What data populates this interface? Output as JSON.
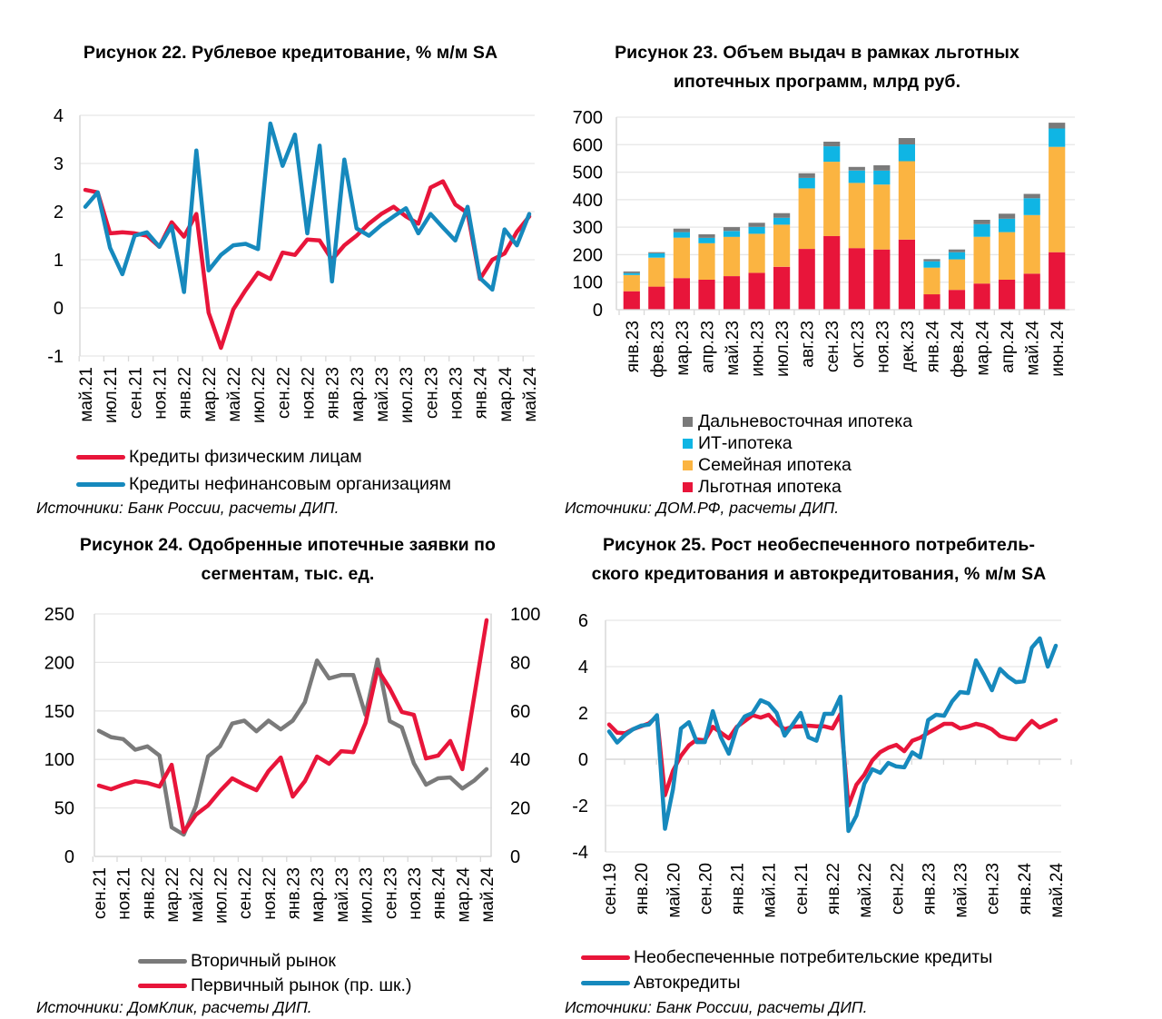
{
  "chart_data": [
    {
      "id": "fig22",
      "type": "line",
      "title": "Рисунок 22. Рублевое кредитование, % м/м SA",
      "xlabel": "",
      "ylabel": "",
      "ylim": [
        -1,
        4
      ],
      "yticks": [
        "4",
        "3",
        "2",
        "1",
        "0",
        "-1"
      ],
      "grid": true,
      "legend_position": "bottom",
      "x_tick_labels": [
        "май.21",
        "июл.21",
        "сен.21",
        "ноя.21",
        "янв.22",
        "мар.22",
        "май.22",
        "июл.22",
        "сен.22",
        "ноя.22",
        "янв.23",
        "мар.23",
        "май.23",
        "июл.23",
        "сен.23",
        "ноя.23",
        "янв.24",
        "мар.24",
        "май.24"
      ],
      "x_start": "май.21",
      "x_end": "май.24",
      "series": [
        {
          "name": "Кредиты физическим лицам",
          "color": "#e8153a",
          "values": [
            2.45,
            2.4,
            1.55,
            1.57,
            1.55,
            1.5,
            1.27,
            1.78,
            1.48,
            1.95,
            -0.1,
            -0.83,
            -0.03,
            0.37,
            0.73,
            0.6,
            1.15,
            1.1,
            1.42,
            1.4,
            1.0,
            1.3,
            1.5,
            1.75,
            1.95,
            2.1,
            1.9,
            1.75,
            2.5,
            2.63,
            2.15,
            1.97,
            0.6,
            1.0,
            1.13,
            1.58,
            1.9
          ]
        },
        {
          "name": "Кредиты нефинансовым организациям",
          "color": "#1689bd",
          "values": [
            2.1,
            2.4,
            1.25,
            0.7,
            1.5,
            1.57,
            1.27,
            1.7,
            0.33,
            3.27,
            0.78,
            1.1,
            1.3,
            1.33,
            1.22,
            3.83,
            2.95,
            3.6,
            1.55,
            3.37,
            0.55,
            3.08,
            1.65,
            1.5,
            1.72,
            1.9,
            2.07,
            1.55,
            1.95,
            1.67,
            1.4,
            2.1,
            0.62,
            0.38,
            1.63,
            1.3,
            1.95
          ]
        }
      ],
      "source": "Источники: Банк России, расчеты ДИП."
    },
    {
      "id": "fig23",
      "type": "bar",
      "stacked": true,
      "title": "Рисунок 23. Объем выдач в рамках льготных ипотечных программ, млрд руб.",
      "xlabel": "",
      "ylabel": "",
      "ylim": [
        0,
        700
      ],
      "yticks": [
        "700",
        "600",
        "500",
        "400",
        "300",
        "200",
        "100",
        "0"
      ],
      "grid": true,
      "legend_position": "bottom",
      "categories": [
        "янв.23",
        "фев.23",
        "мар.23",
        "апр.23",
        "май.23",
        "июн.23",
        "июл.23",
        "авг.23",
        "сен.23",
        "окт.23",
        "ноя.23",
        "дек.23",
        "янв.24",
        "фев.24",
        "мар.24",
        "апр.24",
        "май.24",
        "июн.24"
      ],
      "series": [
        {
          "name": "Льготная ипотека",
          "color": "#e8153a",
          "values": [
            67,
            84,
            115,
            109,
            122,
            134,
            156,
            221,
            268,
            224,
            219,
            255,
            56,
            72,
            95,
            109,
            131,
            209
          ]
        },
        {
          "name": "Семейная ипотека",
          "color": "#fbb441",
          "values": [
            59,
            105,
            147,
            133,
            143,
            142,
            153,
            220,
            270,
            237,
            236,
            285,
            97,
            111,
            170,
            173,
            213,
            383
          ]
        },
        {
          "name": "ИТ-ипотека",
          "color": "#0fb5e4",
          "values": [
            7,
            16,
            20,
            19,
            21,
            25,
            25,
            38,
            56,
            45,
            51,
            61,
            23,
            26,
            46,
            49,
            61,
            67
          ]
        },
        {
          "name": "Дальневосточная ипотека",
          "color": "#7a7a7a",
          "values": [
            6,
            4,
            13,
            13,
            14,
            15,
            17,
            17,
            17,
            13,
            19,
            23,
            8,
            10,
            16,
            18,
            16,
            21
          ]
        }
      ],
      "legend_order": [
        "Дальневосточная ипотека",
        "ИТ-ипотека",
        "Семейная ипотека",
        "Льготная ипотека"
      ],
      "source": "Источники: ДОМ.РФ, расчеты ДИП."
    },
    {
      "id": "fig24",
      "type": "line",
      "title": "Рисунок 24. Одобренные ипотечные заявки по сегментам, тыс. ед.",
      "xlabel": "",
      "ylabel": "",
      "ylim": [
        0,
        250
      ],
      "y2lim": [
        0,
        100
      ],
      "yticks": [
        "250",
        "200",
        "150",
        "100",
        "50",
        "0"
      ],
      "y2ticks": [
        "100",
        "80",
        "60",
        "40",
        "20",
        "0"
      ],
      "grid": true,
      "legend_position": "bottom",
      "x_tick_labels": [
        "сен.21",
        "ноя.21",
        "янв.22",
        "мар.22",
        "май.22",
        "июл.22",
        "сен.22",
        "ноя.22",
        "янв.23",
        "мар.23",
        "май.23",
        "июл.23",
        "сен.23",
        "ноя.23",
        "янв.24",
        "мар.24",
        "май.24"
      ],
      "x_start": "сен.21",
      "x_end": "май.24",
      "series": [
        {
          "name": "Вторичный рынок",
          "axis": "left",
          "color": "#7a7a7a",
          "values": [
            129.5,
            123,
            121,
            110,
            113.5,
            104,
            30,
            22.5,
            52,
            103,
            113.5,
            137,
            140,
            129,
            140,
            131,
            140,
            159,
            202,
            183.5,
            187,
            187,
            146,
            203,
            139.5,
            133,
            96,
            74,
            80.5,
            81.5,
            70,
            78.5,
            90
          ]
        },
        {
          "name": "Первичный рынок (пр. шк.)",
          "axis": "right",
          "color": "#e8153a",
          "values": [
            29.2,
            27.7,
            29.6,
            31,
            30.3,
            28.8,
            37.8,
            10.1,
            17.2,
            21,
            27,
            32.2,
            29.6,
            27.3,
            35.2,
            40.8,
            24.7,
            31,
            41.2,
            38.2,
            43.4,
            43,
            55,
            77.2,
            69.3,
            59.6,
            58.4,
            40.4,
            41.6,
            47.6,
            36,
            66.7,
            97.4
          ]
        }
      ],
      "source": "Источники: ДомКлик, расчеты ДИП."
    },
    {
      "id": "fig25",
      "type": "line",
      "title": "Рисунок 25. Рост необеспеченного потребитель-ского кредитования и автокредитования, % м/м SA",
      "xlabel": "",
      "ylabel": "",
      "ylim": [
        -4,
        6
      ],
      "yticks": [
        "6",
        "4",
        "2",
        "0",
        "-2",
        "-4"
      ],
      "grid": true,
      "legend_position": "bottom",
      "x_tick_labels": [
        "сен.19",
        "янв.20",
        "май.20",
        "сен.20",
        "янв.21",
        "май.21",
        "сен.21",
        "янв.22",
        "май.22",
        "сен.22",
        "янв.23",
        "май.23",
        "сен.23",
        "янв.24",
        "май.24"
      ],
      "x_start": "сен.19",
      "x_end": "май.24",
      "series": [
        {
          "name": "Необеспеченные потребительские кредиты",
          "color": "#e8153a",
          "values": [
            1.5,
            1.15,
            1.12,
            1.3,
            1.42,
            1.55,
            1.85,
            -1.55,
            -0.5,
            0.15,
            0.6,
            0.85,
            0.82,
            1.4,
            1.15,
            0.9,
            1.4,
            1.65,
            1.9,
            1.8,
            1.92,
            1.55,
            1.3,
            1.4,
            1.42,
            1.45,
            1.42,
            1.42,
            1.33,
            1.95,
            -2.0,
            -1.1,
            -0.67,
            -0.05,
            0.31,
            0.5,
            0.62,
            0.35,
            0.8,
            0.93,
            1.14,
            1.33,
            1.53,
            1.53,
            1.33,
            1.41,
            1.53,
            1.45,
            1.29,
            1.0,
            0.9,
            0.86,
            1.29,
            1.65,
            1.37,
            1.53,
            1.69
          ]
        },
        {
          "name": "Автокредиты",
          "color": "#1689bd",
          "values": [
            1.2,
            0.72,
            1.05,
            1.3,
            1.45,
            1.5,
            1.9,
            -3.0,
            -1.3,
            1.33,
            1.6,
            0.74,
            0.74,
            2.08,
            0.95,
            0.24,
            1.35,
            1.85,
            2.0,
            2.55,
            2.4,
            2.0,
            1.02,
            1.5,
            2.0,
            0.95,
            0.8,
            1.96,
            1.96,
            2.7,
            -3.1,
            -2.43,
            -1.06,
            -0.43,
            -0.59,
            -0.16,
            -0.31,
            -0.35,
            0.3,
            0.08,
            1.69,
            1.92,
            1.88,
            2.5,
            2.9,
            2.86,
            4.27,
            3.65,
            2.98,
            3.9,
            3.57,
            3.33,
            3.37,
            4.82,
            5.22,
            4.0,
            4.9
          ]
        }
      ],
      "source": "Источники: Банк России, расчеты ДИП."
    }
  ],
  "titles": {
    "fig22": [
      "Рисунок 22. Рублевое кредитование, % м/м SA"
    ],
    "fig23": [
      "Рисунок 23. Объем выдач в рамках льготных",
      "ипотечных программ, млрд руб."
    ],
    "fig24": [
      "Рисунок 24. Одобренные ипотечные заявки по",
      "сегментам, тыс. ед."
    ],
    "fig25": [
      "Рисунок 25. Рост необеспеченного потребитель-",
      "ского кредитования и автокредитования, % м/м SA"
    ]
  }
}
